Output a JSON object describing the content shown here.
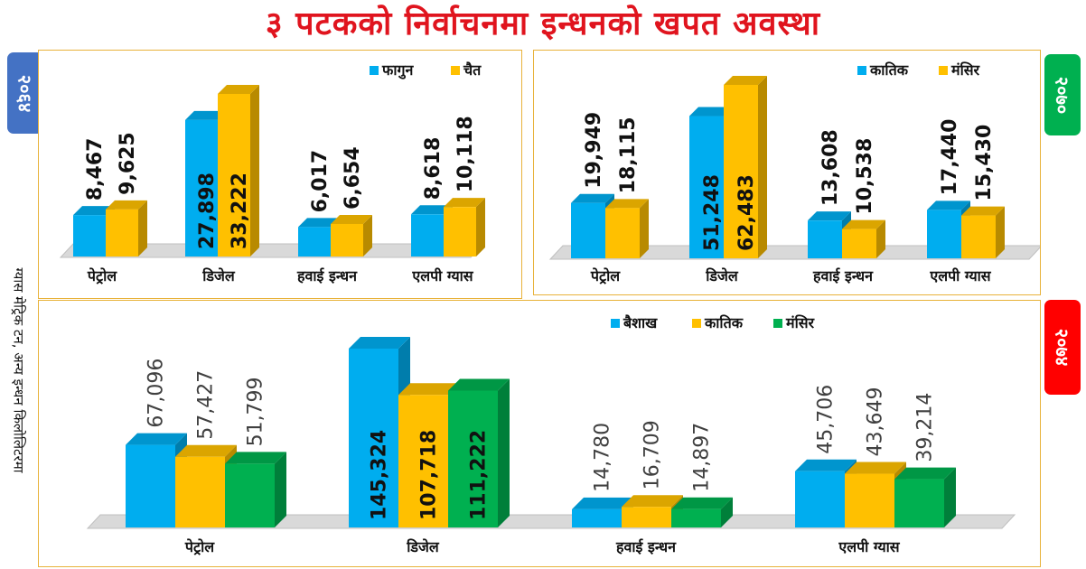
{
  "title": "३ पटकको निर्वाचनमा इन्धनको खपत अवस्था",
  "ylabel": "ग्यास मेट्रिक टन, अन्य इन्धन किलोलिटरमा",
  "colors": {
    "blue": "#00adef",
    "yellow": "#ffc000",
    "green": "#00b050",
    "title_red": "#e0141e"
  },
  "years": [
    {
      "label": "२०६४",
      "color": "#4472c4"
    },
    {
      "label": "२०७०",
      "color": "#00b050"
    },
    {
      "label": "२०७४",
      "color": "#ff0000"
    }
  ],
  "chart_data": [
    {
      "type": "bar",
      "categories": [
        "पेट्रोल",
        "डिजेल",
        "हवाई इन्धन",
        "एलपी ग्यास"
      ],
      "series": [
        {
          "name": "फागुन",
          "values": [
            8467,
            27898,
            6017,
            8618
          ],
          "color": "#00adef"
        },
        {
          "name": "चैत",
          "values": [
            9625,
            33222,
            6654,
            10118
          ],
          "color": "#ffc000"
        }
      ],
      "data_labels": [
        [
          "8,467",
          "27,898",
          "6,017",
          "8,618"
        ],
        [
          "9,625",
          "33,222",
          "6,654",
          "10,118"
        ]
      ],
      "legend": "top-right",
      "ylim": [
        0,
        33222
      ]
    },
    {
      "type": "bar",
      "categories": [
        "पेट्रोल",
        "डिजेल",
        "हवाई इन्धन",
        "एलपी ग्यास"
      ],
      "series": [
        {
          "name": "कातिक",
          "values": [
            19949,
            51248,
            13608,
            17440
          ],
          "color": "#00adef"
        },
        {
          "name": "मंसिर",
          "values": [
            18115,
            62483,
            10538,
            15430
          ],
          "color": "#ffc000"
        }
      ],
      "data_labels": [
        [
          "19,949",
          "51,248",
          "13,608",
          "17,440"
        ],
        [
          "18,115",
          "62,483",
          "10,538",
          "15,430"
        ]
      ],
      "legend": "top-right",
      "ylim": [
        0,
        62483
      ]
    },
    {
      "type": "bar",
      "categories": [
        "पेट्रोल",
        "डिजेल",
        "हवाई इन्धन",
        "एलपी ग्यास"
      ],
      "series": [
        {
          "name": "बैशाख",
          "values": [
            67096,
            145324,
            14780,
            45706
          ],
          "color": "#00adef"
        },
        {
          "name": "कातिक",
          "values": [
            57427,
            107718,
            16709,
            43649
          ],
          "color": "#ffc000"
        },
        {
          "name": "मंसिर",
          "values": [
            51799,
            111222,
            14897,
            39214
          ],
          "color": "#00b050"
        }
      ],
      "data_labels": [
        [
          "67,096",
          "145,324",
          "14,780",
          "45,706"
        ],
        [
          "57,427",
          "107,718",
          "16,709",
          "43,649"
        ],
        [
          "51,799",
          "111,222",
          "14,897",
          "39,214"
        ]
      ],
      "legend": "top-right",
      "ylim": [
        0,
        145324
      ]
    }
  ]
}
